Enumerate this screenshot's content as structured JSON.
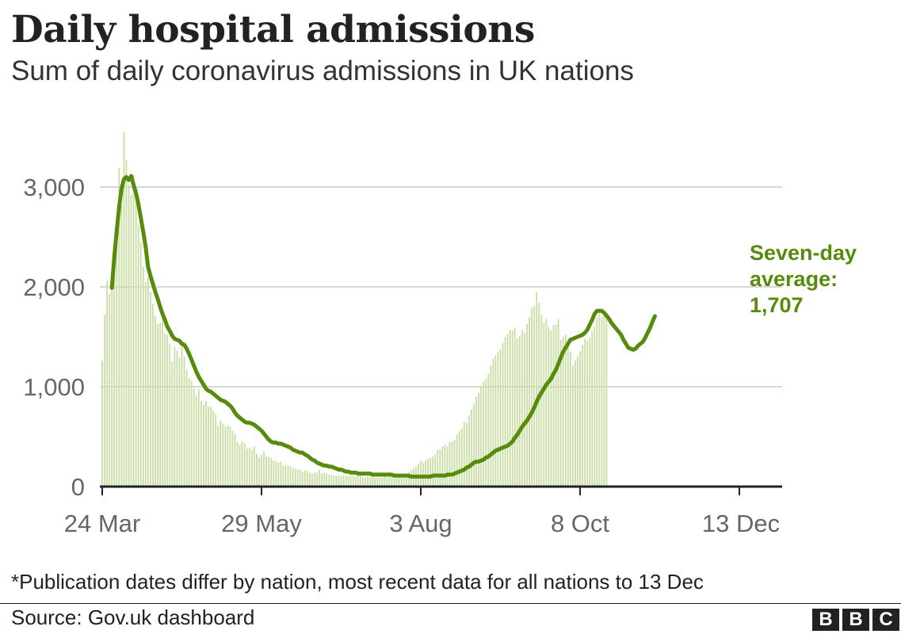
{
  "title": "Daily hospital admissions",
  "subtitle": "Sum of daily coronavirus admissions in UK nations",
  "footnote": "*Publication dates differ by nation, most recent data for all nations to 13 Dec",
  "source": "Source: Gov.uk dashboard",
  "logo": [
    "B",
    "B",
    "C"
  ],
  "colors": {
    "bars": "#c9dea5",
    "line": "#588b0c",
    "grid": "#cccccc",
    "axis": "#222222",
    "tick_text": "#666666"
  },
  "chart_data": {
    "type": "bar",
    "x_axis": {
      "ticks": [
        "24 Mar",
        "29 May",
        "3 Aug",
        "8 Oct",
        "13 Dec"
      ]
    },
    "y_axis": {
      "ticks": [
        "0",
        "1,000",
        "2,000",
        "3,000"
      ],
      "tick_values": [
        0,
        1000,
        2000,
        3000
      ],
      "range": [
        0,
        3600
      ]
    },
    "grid": true,
    "annotation": {
      "lines": [
        "Seven-day",
        "average:",
        "1,707"
      ]
    },
    "series": [
      {
        "kind": "bar",
        "start_date": "24 Mar",
        "values": [
          1260,
          1720,
          2060,
          1930,
          2150,
          2230,
          2490,
          3190,
          2820,
          3550,
          3270,
          3020,
          2920,
          3120,
          2930,
          2620,
          2450,
          2200,
          2050,
          2100,
          1950,
          1830,
          1710,
          1630,
          1640,
          1720,
          1530,
          1520,
          1430,
          1250,
          1400,
          1360,
          1290,
          1410,
          1300,
          1170,
          1080,
          1060,
          980,
          910,
          980,
          860,
          820,
          860,
          800,
          800,
          760,
          730,
          610,
          660,
          630,
          600,
          610,
          600,
          560,
          530,
          450,
          420,
          450,
          430,
          380,
          390,
          370,
          400,
          330,
          290,
          320,
          350,
          300,
          300,
          290,
          260,
          250,
          240,
          250,
          210,
          210,
          210,
          200,
          180,
          180,
          170,
          170,
          150,
          160,
          160,
          140,
          130,
          140,
          140,
          170,
          130,
          140,
          130,
          120,
          120,
          110,
          110,
          110,
          110,
          110,
          110,
          110,
          110,
          110,
          100,
          110,
          110,
          100,
          90,
          100,
          100,
          100,
          90,
          90,
          90,
          90,
          100,
          90,
          100,
          120,
          120,
          120,
          120,
          130,
          120,
          130,
          140,
          160,
          180,
          200,
          230,
          260,
          240,
          260,
          280,
          290,
          300,
          320,
          370,
          370,
          400,
          420,
          400,
          450,
          450,
          470,
          520,
          560,
          580,
          650,
          640,
          710,
          770,
          830,
          900,
          940,
          1010,
          1050,
          1080,
          1130,
          1210,
          1280,
          1310,
          1350,
          1380,
          1440,
          1500,
          1530,
          1570,
          1560,
          1590,
          1480,
          1510,
          1570,
          1540,
          1630,
          1700,
          1790,
          1810,
          1950,
          1840,
          1720,
          1640,
          1680,
          1600,
          1560,
          1620,
          1620,
          1680,
          1470,
          1500,
          1520,
          1450,
          1350,
          1210,
          1270,
          1300,
          1350,
          1420,
          1480,
          1460,
          1490,
          1560,
          1600,
          1700,
          1730,
          1700,
          1750,
          1680
        ]
      },
      {
        "kind": "line",
        "name": "Seven-day average",
        "start_date": "28 Mar",
        "values": [
          1990,
          2300,
          2560,
          2800,
          2980,
          3080,
          3100,
          3070,
          3110,
          3020,
          2940,
          2830,
          2690,
          2550,
          2400,
          2200,
          2110,
          2030,
          1950,
          1880,
          1800,
          1730,
          1670,
          1600,
          1560,
          1510,
          1480,
          1470,
          1460,
          1430,
          1420,
          1380,
          1330,
          1270,
          1210,
          1150,
          1100,
          1060,
          1020,
          980,
          960,
          950,
          930,
          910,
          890,
          870,
          860,
          850,
          830,
          810,
          780,
          740,
          710,
          690,
          670,
          650,
          640,
          640,
          630,
          620,
          600,
          580,
          560,
          530,
          500,
          470,
          450,
          440,
          440,
          430,
          430,
          420,
          410,
          400,
          390,
          370,
          360,
          350,
          340,
          340,
          320,
          310,
          290,
          270,
          260,
          240,
          230,
          220,
          210,
          210,
          200,
          200,
          190,
          180,
          170,
          170,
          160,
          150,
          150,
          140,
          140,
          140,
          130,
          130,
          130,
          130,
          130,
          130,
          120,
          120,
          120,
          120,
          120,
          120,
          120,
          120,
          120,
          110,
          110,
          110,
          110,
          110,
          110,
          110,
          100,
          100,
          100,
          100,
          100,
          100,
          100,
          100,
          100,
          110,
          110,
          110,
          110,
          110,
          110,
          120,
          120,
          120,
          130,
          140,
          150,
          160,
          170,
          190,
          200,
          220,
          240,
          250,
          250,
          260,
          270,
          290,
          300,
          320,
          340,
          360,
          370,
          380,
          390,
          400,
          410,
          430,
          450,
          490,
          520,
          560,
          600,
          630,
          660,
          700,
          740,
          790,
          850,
          900,
          940,
          980,
          1020,
          1050,
          1080,
          1130,
          1170,
          1230,
          1290,
          1350,
          1390,
          1430,
          1470,
          1480,
          1490,
          1500,
          1510,
          1520,
          1540,
          1570,
          1620,
          1670,
          1730,
          1760,
          1760,
          1760,
          1740,
          1710,
          1680,
          1640,
          1610,
          1580,
          1550,
          1520,
          1470,
          1430,
          1390,
          1380,
          1370,
          1380,
          1410,
          1430,
          1450,
          1490,
          1540,
          1590,
          1650,
          1707
        ]
      }
    ]
  }
}
